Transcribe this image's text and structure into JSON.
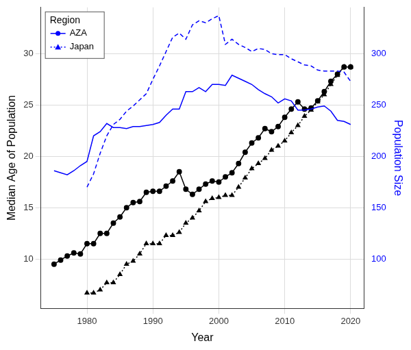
{
  "chart_data": {
    "type": "line",
    "x_label": "Year",
    "y_label": "Median Age of Population",
    "y2_label": "Population Size",
    "legend_title": "Region",
    "legend": "top-left",
    "grid": true,
    "x": [
      1975,
      1976,
      1977,
      1978,
      1979,
      1980,
      1981,
      1982,
      1983,
      1984,
      1985,
      1986,
      1987,
      1988,
      1989,
      1990,
      1991,
      1992,
      1993,
      1994,
      1995,
      1996,
      1997,
      1998,
      1999,
      2000,
      2001,
      2002,
      2003,
      2004,
      2005,
      2006,
      2007,
      2008,
      2009,
      2010,
      2011,
      2012,
      2013,
      2014,
      2015,
      2016,
      2017,
      2018,
      2019,
      2020
    ],
    "xlim": [
      1973,
      2022
    ],
    "xticks": [
      1980,
      1990,
      2000,
      2010,
      2020
    ],
    "ylim": [
      5.2,
      34.5
    ],
    "yticks": [
      10,
      15,
      20,
      25,
      30
    ],
    "y2lim": [
      52,
      345
    ],
    "y2ticks": [
      100,
      150,
      200,
      250,
      300
    ],
    "series": [
      {
        "name": "AZA",
        "color": "#0000ff",
        "axis": "y2",
        "marker": "none",
        "line_style": "solid",
        "values": [
          186,
          184,
          182,
          186,
          191,
          195,
          220,
          224,
          232,
          228,
          228,
          227,
          229,
          229,
          230,
          231,
          233,
          240,
          246,
          246,
          263,
          263,
          267,
          263,
          270,
          270,
          269,
          279,
          276,
          273,
          270,
          265,
          261,
          258,
          252,
          256,
          254,
          245,
          245,
          246,
          248,
          249,
          244,
          235,
          234,
          231
        ]
      },
      {
        "name": "Japan",
        "color": "#0000ff",
        "axis": "y2",
        "marker": "none",
        "line_style": "dashed",
        "values": [
          null,
          null,
          null,
          null,
          null,
          170,
          183,
          203,
          220,
          231,
          236,
          244,
          249,
          255,
          261,
          275,
          288,
          302,
          316,
          320,
          314,
          328,
          332,
          330,
          334,
          337,
          309,
          314,
          309,
          306,
          302,
          305,
          304,
          300,
          299,
          299,
          295,
          292,
          289,
          288,
          284,
          283,
          283,
          283,
          282,
          273
        ]
      },
      {
        "name": "AZA",
        "color": "#000000",
        "axis": "y",
        "marker": "circle",
        "line_style": "solid",
        "values": [
          9.5,
          9.9,
          10.3,
          10.6,
          10.5,
          11.5,
          11.5,
          12.5,
          12.5,
          13.5,
          14.1,
          15.0,
          15.5,
          15.6,
          16.5,
          16.6,
          16.6,
          17.1,
          17.6,
          18.5,
          16.8,
          16.3,
          16.8,
          17.3,
          17.6,
          17.5,
          18.0,
          18.4,
          19.3,
          20.4,
          21.3,
          21.8,
          22.7,
          22.4,
          22.9,
          23.8,
          24.6,
          25.3,
          24.6,
          24.7,
          25.4,
          26.3,
          27.3,
          28.0,
          28.7,
          28.7
        ]
      },
      {
        "name": "Japan",
        "color": "#000000",
        "axis": "y",
        "marker": "triangle",
        "line_style": "dotted",
        "values": [
          null,
          null,
          null,
          null,
          null,
          6.7,
          6.7,
          7.0,
          7.7,
          7.7,
          8.5,
          9.5,
          9.8,
          10.5,
          11.5,
          11.5,
          11.5,
          12.3,
          12.3,
          12.6,
          13.5,
          14.0,
          14.7,
          15.6,
          15.9,
          16.0,
          16.2,
          16.2,
          17.0,
          17.9,
          18.8,
          19.3,
          19.8,
          20.6,
          21.0,
          21.5,
          22.3,
          23.0,
          23.9,
          24.5,
          25.3,
          26.0,
          27.0,
          27.9,
          28.7,
          28.7
        ]
      }
    ]
  }
}
